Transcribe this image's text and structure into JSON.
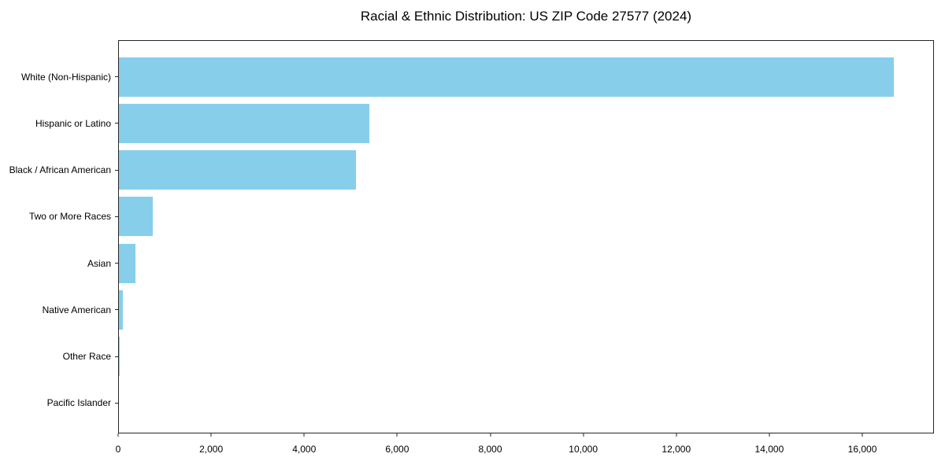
{
  "chart_data": {
    "type": "bar",
    "orientation": "horizontal",
    "title": "Racial & Ethnic Distribution: US ZIP Code 27577 (2024)",
    "categories": [
      "White (Non-Hispanic)",
      "Hispanic or Latino",
      "Black / African American",
      "Two or More Races",
      "Asian",
      "Native American",
      "Other Race",
      "Pacific Islander"
    ],
    "values": [
      16700,
      5400,
      5100,
      730,
      350,
      85,
      15,
      0
    ],
    "xlabel": "",
    "ylabel": "",
    "xlim": [
      0,
      17540
    ],
    "xticks": [
      {
        "value": 0,
        "label": "0"
      },
      {
        "value": 2000,
        "label": "2,000"
      },
      {
        "value": 4000,
        "label": "4,000"
      },
      {
        "value": 6000,
        "label": "6,000"
      },
      {
        "value": 8000,
        "label": "8,000"
      },
      {
        "value": 10000,
        "label": "10,000"
      },
      {
        "value": 12000,
        "label": "12,000"
      },
      {
        "value": 14000,
        "label": "14,000"
      },
      {
        "value": 16000,
        "label": "16,000"
      }
    ],
    "grid": false,
    "legend": "none",
    "bar_color": "#87CEEB",
    "background_color": "#FFFFFF",
    "text_color": "#000000",
    "spine_color": "#262626"
  }
}
